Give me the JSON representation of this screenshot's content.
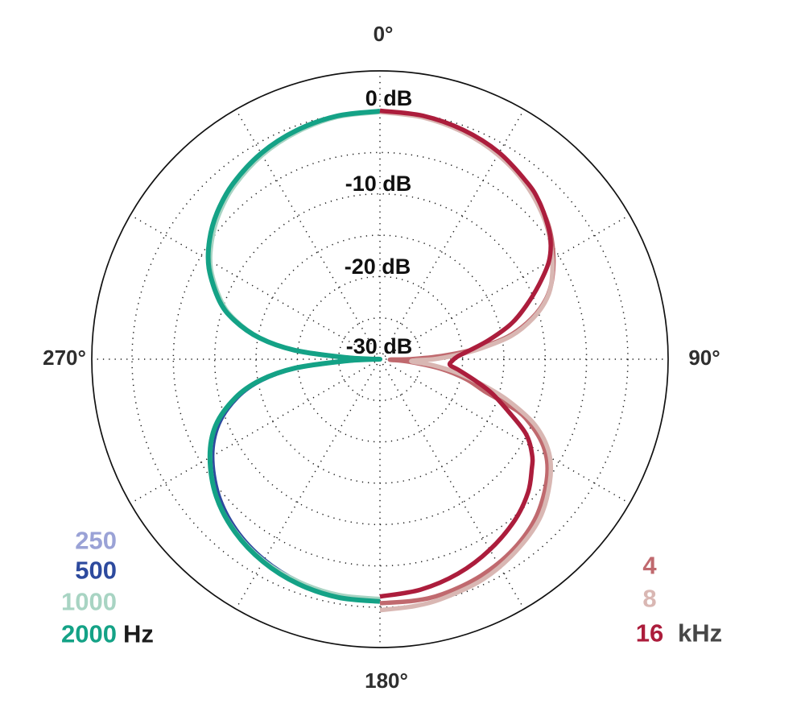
{
  "figure": {
    "kind": "microphone-polar-pattern",
    "pattern": "figure-8 (bidirectional)",
    "background": "#ffffff",
    "frame_color": "#111111",
    "grid_color": "#1d1d1d"
  },
  "chart_data": {
    "type": "polar-line",
    "title": "",
    "angular_tick_labels": [
      "0°",
      "90°",
      "180°",
      "270°"
    ],
    "radial_tick_labels": [
      "0 dB",
      "-10 dB",
      "-20 dB",
      "-30 dB"
    ],
    "radial_range_db": [
      -30,
      0
    ],
    "ring_step_db": 5,
    "spoke_step_deg": 30,
    "grid_style": "dotted",
    "legend": {
      "left_unit": "Hz",
      "left_unit_color": "#1b1b1b",
      "right_unit": "kHz",
      "right_unit_color": "#474747",
      "left": [
        {
          "label": "250",
          "color": "#9aa2d6"
        },
        {
          "label": "500",
          "color": "#2d4a9e"
        },
        {
          "label": "1000",
          "color": "#a8d4c3"
        },
        {
          "label": "2000",
          "color": "#14a286"
        }
      ],
      "right": [
        {
          "label": "4",
          "color": "#c0696e"
        },
        {
          "label": "8",
          "color": "#d9b7b3"
        },
        {
          "label": "16",
          "color": "#ac1d3c"
        }
      ]
    },
    "series": [
      {
        "id": "250hz",
        "name": "250 Hz",
        "frequency": 250,
        "unit": "Hz",
        "side": "left",
        "color": "#9aa2d6",
        "stroke_width": 5.5,
        "points": [
          [
            180,
            -0.8
          ],
          [
            190,
            -0.85
          ],
          [
            200,
            -1.2
          ],
          [
            210,
            -1.8
          ],
          [
            220,
            -2.8
          ],
          [
            230,
            -4.25
          ],
          [
            240,
            -6.35
          ],
          [
            248,
            -8.7
          ],
          [
            255,
            -11.95
          ],
          [
            260,
            -15.35
          ],
          [
            264,
            -19.7
          ],
          [
            267,
            -25.6
          ],
          [
            269,
            -29.2
          ],
          [
            270,
            -30
          ],
          [
            271,
            -29.2
          ],
          [
            273,
            -25.6
          ],
          [
            276,
            -19.6
          ],
          [
            280,
            -15.2
          ],
          [
            285,
            -11.74
          ],
          [
            290,
            -9.32
          ],
          [
            298,
            -6.57
          ],
          [
            305,
            -4.83
          ],
          [
            312,
            -3.49
          ],
          [
            320,
            -2.32
          ],
          [
            330,
            -1.25
          ],
          [
            340,
            -0.54
          ],
          [
            350,
            -0.13
          ],
          [
            360,
            -0.05
          ]
        ]
      },
      {
        "id": "500hz",
        "name": "500 Hz",
        "frequency": 500,
        "unit": "Hz",
        "side": "left",
        "color": "#2d4a9e",
        "stroke_width": 5,
        "points": [
          [
            180,
            -0.85
          ],
          [
            190,
            -0.95
          ],
          [
            200,
            -1.35
          ],
          [
            210,
            -2.0
          ],
          [
            220,
            -3.0
          ],
          [
            230,
            -4.5
          ],
          [
            240,
            -6.6
          ],
          [
            248,
            -8.95
          ],
          [
            255,
            -12.15
          ],
          [
            260,
            -15.5
          ],
          [
            264,
            -19.8
          ],
          [
            267,
            -25.7
          ],
          [
            269,
            -29.2
          ],
          [
            270,
            -30
          ],
          [
            271,
            -29.2
          ],
          [
            273,
            -25.6
          ],
          [
            276,
            -19.6
          ],
          [
            280,
            -15.2
          ],
          [
            285,
            -11.74
          ],
          [
            290,
            -9.32
          ],
          [
            298,
            -6.57
          ],
          [
            305,
            -4.83
          ],
          [
            312,
            -3.49
          ],
          [
            320,
            -2.32
          ],
          [
            330,
            -1.25
          ],
          [
            340,
            -0.54
          ],
          [
            350,
            -0.13
          ],
          [
            360,
            -0.03
          ]
        ]
      },
      {
        "id": "1000hz",
        "name": "1000 Hz",
        "frequency": 1000,
        "unit": "Hz",
        "side": "left",
        "color": "#a8d4c3",
        "stroke_width": 5.5,
        "points": [
          [
            180,
            -1.0
          ],
          [
            190,
            -1.05
          ],
          [
            200,
            -1.35
          ],
          [
            210,
            -1.85
          ],
          [
            220,
            -2.78
          ],
          [
            230,
            -4.15
          ],
          [
            240,
            -6.28
          ],
          [
            248,
            -8.55
          ],
          [
            255,
            -11.87
          ],
          [
            260,
            -15.28
          ],
          [
            264,
            -19.63
          ],
          [
            267,
            -25.6
          ],
          [
            269,
            -29.2
          ],
          [
            270,
            -30
          ],
          [
            271,
            -29.2
          ],
          [
            273,
            -25.6
          ],
          [
            276,
            -19.55
          ],
          [
            280,
            -15.3
          ],
          [
            285,
            -11.95
          ],
          [
            290,
            -9.6
          ],
          [
            298,
            -6.85
          ],
          [
            305,
            -5.15
          ],
          [
            312,
            -3.8
          ],
          [
            320,
            -2.6
          ],
          [
            330,
            -1.5
          ],
          [
            340,
            -0.75
          ],
          [
            350,
            -0.25
          ],
          [
            360,
            -0.1
          ]
        ]
      },
      {
        "id": "2000hz",
        "name": "2000 Hz",
        "frequency": 2000,
        "unit": "Hz",
        "side": "left",
        "color": "#14a286",
        "stroke_width": 6,
        "points": [
          [
            180,
            -0.7
          ],
          [
            190,
            -0.75
          ],
          [
            200,
            -1.08
          ],
          [
            210,
            -1.72
          ],
          [
            220,
            -2.71
          ],
          [
            230,
            -4.15
          ],
          [
            240,
            -6.25
          ],
          [
            248,
            -8.55
          ],
          [
            255,
            -11.86
          ],
          [
            260,
            -15.28
          ],
          [
            264,
            -19.65
          ],
          [
            267,
            -25.6
          ],
          [
            269,
            -29.2
          ],
          [
            270,
            -30
          ],
          [
            271,
            -29.2
          ],
          [
            273,
            -25.6
          ],
          [
            276,
            -19.6
          ],
          [
            280,
            -15.2
          ],
          [
            285,
            -11.74
          ],
          [
            290,
            -9.32
          ],
          [
            298,
            -6.57
          ],
          [
            305,
            -4.83
          ],
          [
            312,
            -3.49
          ],
          [
            320,
            -2.32
          ],
          [
            330,
            -1.25
          ],
          [
            340,
            -0.54
          ],
          [
            350,
            -0.13
          ],
          [
            360,
            0
          ]
        ]
      },
      {
        "id": "4khz",
        "name": "4 kHz",
        "frequency": 4000,
        "unit": "kHz",
        "side": "right",
        "color": "#c0696e",
        "stroke_width": 5.5,
        "points": [
          [
            0,
            0
          ],
          [
            10,
            -0.13
          ],
          [
            20,
            -0.54
          ],
          [
            30,
            -1.22
          ],
          [
            40,
            -2.25
          ],
          [
            50,
            -3.7
          ],
          [
            58,
            -5.3
          ],
          [
            65,
            -7.0
          ],
          [
            70,
            -8.6
          ],
          [
            75,
            -11.0
          ],
          [
            80,
            -14.3
          ],
          [
            84,
            -18.6
          ],
          [
            87,
            -22.5
          ],
          [
            90,
            -26.3
          ],
          [
            92.5,
            -28.8
          ],
          [
            95,
            -26.5
          ],
          [
            99,
            -22.5
          ],
          [
            103,
            -19.3
          ],
          [
            107,
            -16.8
          ],
          [
            109.5,
            -13.8
          ],
          [
            112,
            -11.0
          ],
          [
            118,
            -7.6
          ],
          [
            125,
            -5.3
          ],
          [
            135,
            -3.2
          ],
          [
            145,
            -1.9
          ],
          [
            155,
            -1.1
          ],
          [
            165,
            -0.6
          ],
          [
            172,
            -0.5
          ],
          [
            180,
            -0.49
          ]
        ]
      },
      {
        "id": "8khz",
        "name": "8 kHz",
        "frequency": 8000,
        "unit": "kHz",
        "side": "right",
        "color": "#d9b7b3",
        "stroke_width": 5.5,
        "points": [
          [
            0,
            -0.12
          ],
          [
            10,
            -0.3
          ],
          [
            20,
            -0.75
          ],
          [
            30,
            -1.45
          ],
          [
            40,
            -2.5
          ],
          [
            50,
            -3.95
          ],
          [
            58,
            -5.5
          ],
          [
            65,
            -7.05
          ],
          [
            70,
            -8.5
          ],
          [
            75,
            -10.8
          ],
          [
            80,
            -13.9
          ],
          [
            84,
            -17.8
          ],
          [
            87,
            -20.8
          ],
          [
            90,
            -23.5
          ],
          [
            93.5,
            -26.2
          ],
          [
            96.5,
            -23.5
          ],
          [
            100,
            -20.5
          ],
          [
            104,
            -17.2
          ],
          [
            108,
            -13.6
          ],
          [
            113,
            -9.6
          ],
          [
            119,
            -6.6
          ],
          [
            126,
            -4.6
          ],
          [
            135,
            -2.7
          ],
          [
            145,
            -1.5
          ],
          [
            155,
            -0.6
          ],
          [
            165,
            -0.1
          ],
          [
            172,
            0.15
          ],
          [
            180,
            0.35
          ]
        ]
      },
      {
        "id": "16khz",
        "name": "16 kHz",
        "frequency": 16000,
        "unit": "kHz",
        "side": "right",
        "color": "#ac1d3c",
        "stroke_width": 5.5,
        "points": [
          [
            0,
            0.05
          ],
          [
            10,
            -0.1
          ],
          [
            20,
            -0.5
          ],
          [
            30,
            -1.15
          ],
          [
            40,
            -2.2
          ],
          [
            45,
            -2.85
          ],
          [
            50,
            -3.75
          ],
          [
            55,
            -4.8
          ],
          [
            60,
            -6.4
          ],
          [
            65,
            -8.8
          ],
          [
            70,
            -11.2
          ],
          [
            75,
            -13.6
          ],
          [
            80,
            -16.6
          ],
          [
            84,
            -18.9
          ],
          [
            88,
            -20.6
          ],
          [
            91,
            -21.2
          ],
          [
            94.7,
            -21.5
          ],
          [
            98,
            -20.3
          ],
          [
            103,
            -18.0
          ],
          [
            107,
            -15.8
          ],
          [
            112,
            -13.3
          ],
          [
            117,
            -10.2
          ],
          [
            122,
            -8.3
          ],
          [
            126,
            -7.3
          ],
          [
            132,
            -5.9
          ],
          [
            140,
            -4.6
          ],
          [
            150,
            -3.4
          ],
          [
            160,
            -2.4
          ],
          [
            170,
            -1.7
          ],
          [
            180,
            -1.3
          ]
        ]
      }
    ],
    "notes": "Radial scale: 0 dB at outer data ring, -30 dB at center, dotted rings every 5 dB, dotted spokes every 30°. Low frequencies (250–2000 Hz) plotted on the left half, high frequencies (4–16 kHz) on the right half. 16 kHz null is shallow (≈ -21.5 dB) and shifted past 90°."
  }
}
